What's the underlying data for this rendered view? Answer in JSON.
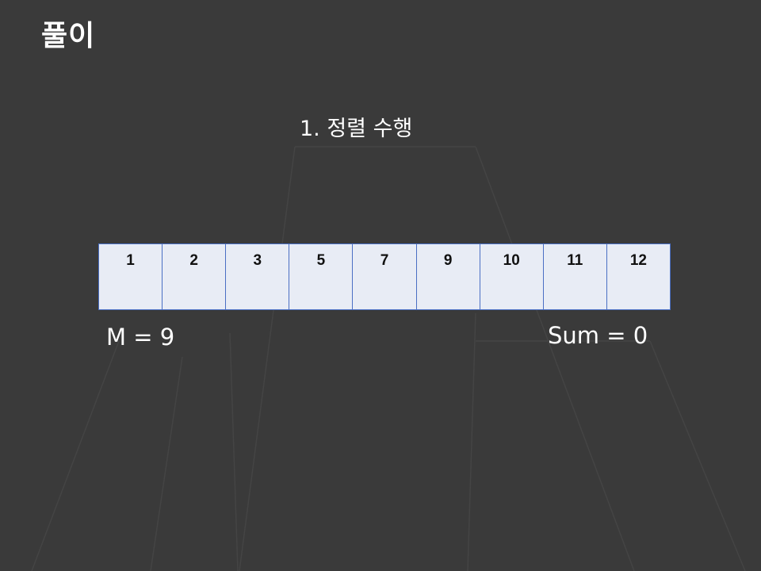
{
  "slide": {
    "title": "풀이",
    "step": "1. 정렬 수행",
    "array": [
      "1",
      "2",
      "3",
      "5",
      "7",
      "9",
      "10",
      "11",
      "12"
    ],
    "m_label": "M = 9",
    "sum_label": "Sum = 0"
  },
  "colors": {
    "background": "#3a3a3a",
    "cell_fill": "#e8ecf5",
    "cell_border": "#4a6fc4",
    "text": "#ffffff"
  }
}
